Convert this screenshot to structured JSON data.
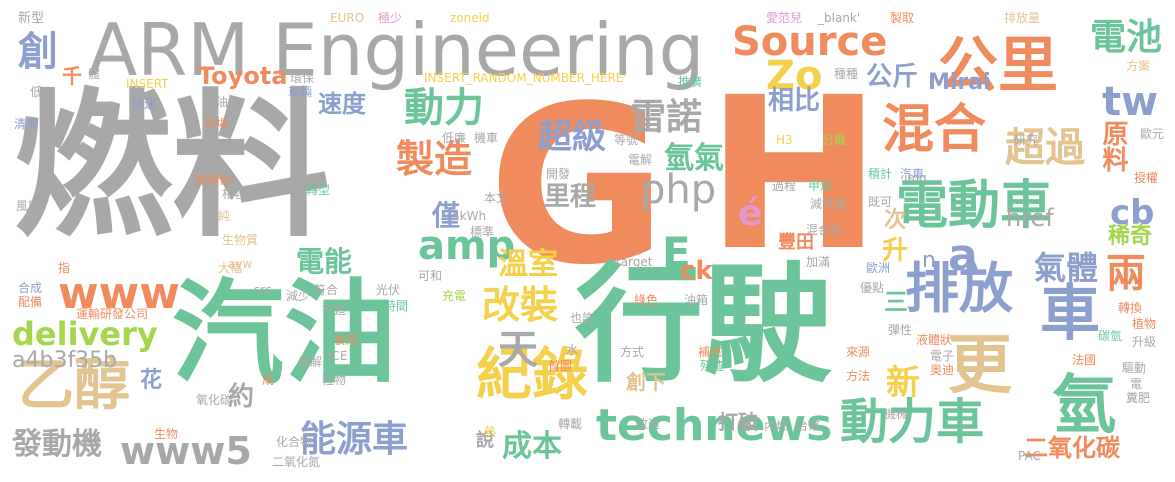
{
  "words": {
    "ranliao": "燃料",
    "g": "G",
    "h": "H",
    "arm": "ARM Engineering",
    "qiyou": "汽油",
    "xingshi": "行駛",
    "gongli": "公里",
    "hunhe": "混合",
    "diandongche": "電動車",
    "paifang": "排放",
    "che": "車",
    "source": "Source",
    "technews": "technews",
    "dongliche": "動力車",
    "jilu": "紀錄",
    "yichun": "乙醇",
    "geng": "更",
    "qing": "氫",
    "www": "www",
    "www5": "www5",
    "delivery": "delivery",
    "nengyuanche": "能源車",
    "zhizao": "製造",
    "chaoguo": "超過",
    "dongli": "動力",
    "leinuo": "雷諾",
    "php": "php",
    "amp": "amp",
    "e": "E",
    "a": "a",
    "tw": "tw",
    "cb": "cb",
    "dianchi": "電池",
    "yuanliao": "原料",
    "zo": "Zo",
    "toyota": "Toyota",
    "sudu": "速度",
    "chuang": "創",
    "qian": "千",
    "chaoji": "超級",
    "qingqi": "氫氣",
    "gaizhuang": "改裝",
    "wenshi": "溫室",
    "tian": "天",
    "chengben": "成本",
    "fadongji": "發動機",
    "a4b": "a4b3f35b",
    "e_acute": "é",
    "liang": "兩",
    "qiti": "氣體",
    "eryanghuatan": "二氧化碳",
    "mirai": "Mirai",
    "href": "href",
    "xiangbi": "相比",
    "gongjin": "公斤",
    "dianneng": "電能",
    "jin": "僅",
    "licheng": "里程",
    "ck": "ck",
    "sheng": "升",
    "ci": "次",
    "fengtian": "豐田",
    "xiqi": "稀奇",
    "xin": "新",
    "hua": "花",
    "yue": "約",
    "chuangxia": "創下",
    "dapo": "打破",
    "san": "三",
    "n": "n",
    "shuo": "說",
    "small_1": "新型",
    "small_2": "體",
    "small_3": "EURO",
    "small_4": "極少",
    "small_5": "zoneid",
    "small_6": "愛范兒",
    "small_7": "_blank'",
    "small_8": "製取",
    "small_9": "排放量",
    "small_10": "INSERT",
    "small_11": "環保",
    "small_12": "INSERT_RANDOM_NUMBER_HERE'",
    "small_13": "推廣",
    "small_14": "種種",
    "small_15": "方案",
    "small_16": "低",
    "small_17": "快速",
    "small_18": "車輛",
    "small_19": "清潔",
    "small_20": "燃油車",
    "small_21": "低廉",
    "small_22": "機車",
    "small_23": "市場",
    "small_24": "等號",
    "small_25": "H3",
    "small_26": "分離",
    "small_27": "研究",
    "small_28": "歐元",
    "small_29": "創新點",
    "small_30": "電解",
    "small_31": "積計",
    "small_32": "汽車",
    "small_33": "授權",
    "small_34": "相容",
    "small_35": "開發",
    "small_36": "過程",
    "small_37": "甲烷",
    "small_38": "img",
    "small_39": "轉型",
    "small_40": "本文",
    "small_41": "既可",
    "small_42": "風能",
    "small_43": "純",
    "small_44": "減排量",
    "small_45": "5kWh",
    "small_46": "標準",
    "small_47": "混合物",
    "small_48": "生物質",
    "small_49": "avw",
    "small_50": "大幅",
    "small_51": "加滿",
    "small_52": "歐洲",
    "small_53": "指",
    "small_54": "target",
    "small_55": "可和",
    "small_56": "合成",
    "small_57": "配備",
    "small_58": "src",
    "small_59": "減少",
    "small_60": "光伏",
    "small_61": "時間",
    "small_62": "充電",
    "small_63": "綠色",
    "small_64": "油箱",
    "small_65": "優點",
    "small_66": "轉換",
    "small_67": "運輸研發公司",
    "small_68": "符合",
    "small_69": "打造",
    "small_70": "也許",
    "small_71": "彈性",
    "small_72": "植物",
    "small_73": "食用",
    "small_74": "液體狀",
    "small_75": "ICE",
    "small_76": "碳氫",
    "small_77": "水",
    "small_78": "補充",
    "small_79": "來源",
    "small_80": "升級",
    "small_81": "優解",
    "small_82": "粒物",
    "small_83": "首圖",
    "small_84": "電子",
    "small_85": "法國",
    "small_86": "方式",
    "small_87": "殘渣",
    "small_88": "奧迪",
    "small_89": "驅動",
    "small_90": "氧化碳",
    "small_91": "方法",
    "small_92": "電",
    "small_93": "機械",
    "small_94": "糞肥",
    "small_95": "生物",
    "small_96": "化合物",
    "small_97": "改造",
    "small_98": "轉載",
    "small_99": "內燃",
    "small_100": "台幣",
    "small_101": "二氧化氮",
    "small_102": "PAC",
    "small_103": "成",
    "small_104": "熱"
  }
}
